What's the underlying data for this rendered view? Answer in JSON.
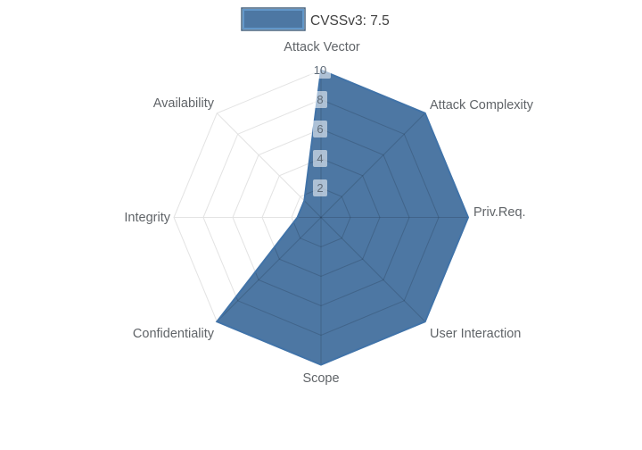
{
  "legend": {
    "label": "CVSSv3: 7.5"
  },
  "colors": {
    "fill": "#4d77a3",
    "line": "#4173a8",
    "grid_outer": "#e3e3e3",
    "grid_inner": "rgba(25,35,50,0.22)",
    "tick_box_bg": "rgba(255,255,255,0.55)",
    "legend_swatch_border": "#6297c9",
    "legend_swatch_outline": "#44617e"
  },
  "chart_data": {
    "type": "radar",
    "title": "CVSSv3: 7.5",
    "categories": [
      "Attack Vector",
      "Attack Complexity",
      "Priv.Req.",
      "User Interaction",
      "Scope",
      "Confidentiality",
      "Integrity",
      "Availability"
    ],
    "values": [
      10,
      10,
      10,
      10,
      10,
      10,
      1.6,
      1.6
    ],
    "radial_ticks": [
      2,
      4,
      6,
      8,
      10
    ],
    "radial_range": [
      0,
      10
    ],
    "legend_position": "top-center",
    "grid": "on",
    "notes": "8-axis polar chart, first axis at top, axes clockwise"
  }
}
